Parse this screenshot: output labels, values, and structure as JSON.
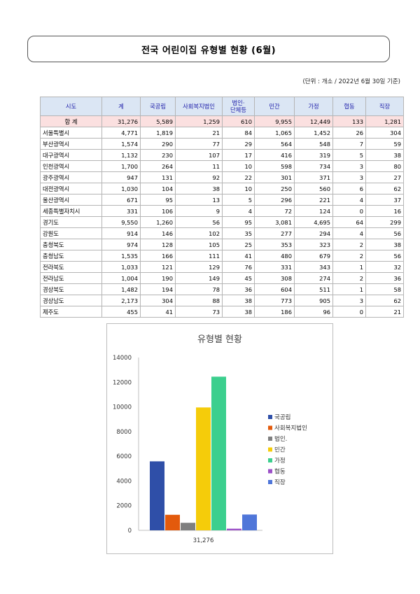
{
  "title": "전국 어린이집 유형별 현황 (6월)",
  "unit_note": "(단위 : 개소 / 2022년 6월 30일 기준)",
  "table": {
    "headers": [
      "시도",
      "계",
      "국공립",
      "사회복지법인",
      "법인·\n단체등",
      "민간",
      "가정",
      "협동",
      "직장"
    ],
    "total": {
      "region": "합 계",
      "values": [
        "31,276",
        "5,589",
        "1,259",
        "610",
        "9,955",
        "12,449",
        "133",
        "1,281"
      ]
    },
    "rows": [
      {
        "region": "서울특별시",
        "values": [
          "4,771",
          "1,819",
          "21",
          "84",
          "1,065",
          "1,452",
          "26",
          "304"
        ]
      },
      {
        "region": "부산광역시",
        "values": [
          "1,574",
          "290",
          "77",
          "29",
          "564",
          "548",
          "7",
          "59"
        ]
      },
      {
        "region": "대구광역시",
        "values": [
          "1,132",
          "230",
          "107",
          "17",
          "416",
          "319",
          "5",
          "38"
        ]
      },
      {
        "region": "인천광역시",
        "values": [
          "1,700",
          "264",
          "11",
          "10",
          "598",
          "734",
          "3",
          "80"
        ]
      },
      {
        "region": "광주광역시",
        "values": [
          "947",
          "131",
          "92",
          "22",
          "301",
          "371",
          "3",
          "27"
        ]
      },
      {
        "region": "대전광역시",
        "values": [
          "1,030",
          "104",
          "38",
          "10",
          "250",
          "560",
          "6",
          "62"
        ]
      },
      {
        "region": "울산광역시",
        "values": [
          "671",
          "95",
          "13",
          "5",
          "296",
          "221",
          "4",
          "37"
        ]
      },
      {
        "region": "세종특별자치시",
        "values": [
          "331",
          "106",
          "9",
          "4",
          "72",
          "124",
          "0",
          "16"
        ]
      },
      {
        "region": "경기도",
        "values": [
          "9,550",
          "1,260",
          "56",
          "95",
          "3,081",
          "4,695",
          "64",
          "299"
        ]
      },
      {
        "region": "강원도",
        "values": [
          "914",
          "146",
          "102",
          "35",
          "277",
          "294",
          "4",
          "56"
        ]
      },
      {
        "region": "충청북도",
        "values": [
          "974",
          "128",
          "105",
          "25",
          "353",
          "323",
          "2",
          "38"
        ]
      },
      {
        "region": "충청남도",
        "values": [
          "1,535",
          "166",
          "111",
          "41",
          "480",
          "679",
          "2",
          "56"
        ]
      },
      {
        "region": "전라북도",
        "values": [
          "1,033",
          "121",
          "129",
          "76",
          "331",
          "343",
          "1",
          "32"
        ]
      },
      {
        "region": "전라남도",
        "values": [
          "1,004",
          "190",
          "149",
          "45",
          "308",
          "274",
          "2",
          "36"
        ]
      },
      {
        "region": "경상북도",
        "values": [
          "1,482",
          "194",
          "78",
          "36",
          "604",
          "511",
          "1",
          "58"
        ]
      },
      {
        "region": "경상남도",
        "values": [
          "2,173",
          "304",
          "88",
          "38",
          "773",
          "905",
          "3",
          "62"
        ]
      },
      {
        "region": "제주도",
        "values": [
          "455",
          "41",
          "73",
          "38",
          "186",
          "96",
          "0",
          "21"
        ]
      }
    ]
  },
  "colors": {
    "header_bg": "#dbe6f4",
    "header_text": "#1a1aa8",
    "total_bg": "#fbe0e0"
  },
  "chart_data": {
    "type": "bar",
    "title": "유형별 현황",
    "categories": [
      "31,276"
    ],
    "ylim": [
      0,
      14000
    ],
    "yticks": [
      0,
      2000,
      4000,
      6000,
      8000,
      10000,
      12000,
      14000
    ],
    "legend_position": "right",
    "grid": false,
    "series": [
      {
        "name": "국공립",
        "values": [
          5589
        ],
        "color": "#2f4fa8"
      },
      {
        "name": "사회복지법인",
        "values": [
          1259
        ],
        "color": "#e35a0c"
      },
      {
        "name": "법인.",
        "values": [
          610
        ],
        "color": "#7f7f7f"
      },
      {
        "name": "민간",
        "values": [
          9955
        ],
        "color": "#f5cc0a"
      },
      {
        "name": "가정",
        "values": [
          12449
        ],
        "color": "#3ccf8e"
      },
      {
        "name": "협동",
        "values": [
          133
        ],
        "color": "#9b4fc7"
      },
      {
        "name": "직장",
        "values": [
          1281
        ],
        "color": "#4f76d9"
      }
    ]
  }
}
